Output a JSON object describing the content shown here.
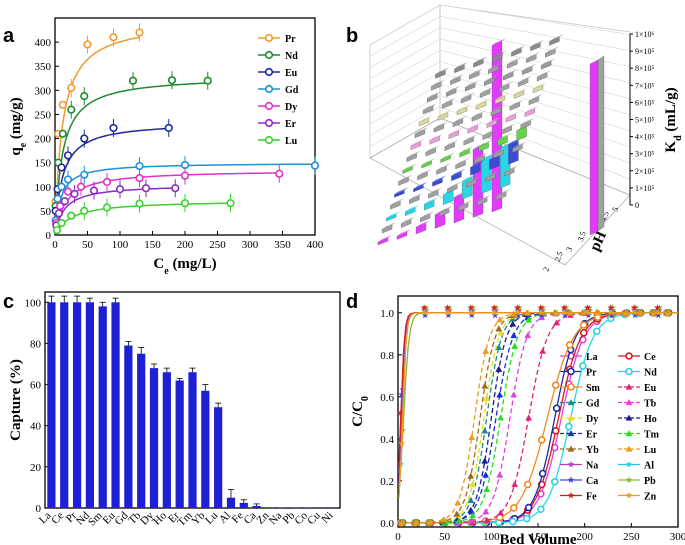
{
  "panels": {
    "a": "a",
    "b": "b",
    "c": "c",
    "d": "d"
  },
  "chart_data": [
    {
      "panel": "a",
      "type": "scatter",
      "xlabel": "C",
      "xlabel_sub": "e",
      "xlabel_unit": " (mg/L)",
      "ylabel": "q",
      "ylabel_sub": "e",
      "ylabel_unit": " (mg/g)",
      "xlim": [
        0,
        400
      ],
      "ylim": [
        0,
        450
      ],
      "xticks": [
        0,
        50,
        100,
        150,
        200,
        250,
        300,
        350,
        400
      ],
      "yticks": [
        0,
        50,
        100,
        150,
        200,
        250,
        300,
        350,
        400
      ],
      "legend_position": "top-right",
      "series": [
        {
          "name": "Pr",
          "color": "#f39a2b",
          "qmax": 445,
          "K": 0.09,
          "x": [
            1,
            5,
            12,
            25,
            50,
            90,
            130
          ],
          "y": [
            70,
            210,
            270,
            305,
            395,
            410,
            420
          ]
        },
        {
          "name": "Nd",
          "color": "#1f8a2e",
          "qmax": 330,
          "K": 0.09,
          "x": [
            1,
            5,
            12,
            25,
            45,
            120,
            180,
            235
          ],
          "y": [
            60,
            150,
            210,
            260,
            288,
            320,
            321,
            320
          ]
        },
        {
          "name": "Eu",
          "color": "#1b2a9c",
          "qmax": 235,
          "K": 0.09,
          "x": [
            1,
            4,
            10,
            20,
            45,
            90,
            175
          ],
          "y": [
            50,
            95,
            140,
            165,
            200,
            222,
            222
          ]
        },
        {
          "name": "Gd",
          "color": "#1e90d6",
          "qmax": 150,
          "K": 0.12,
          "x": [
            1,
            4,
            10,
            20,
            45,
            130,
            200,
            400
          ],
          "y": [
            30,
            75,
            100,
            115,
            125,
            143,
            145,
            144
          ]
        },
        {
          "name": "Dy",
          "color": "#e030c8",
          "qmax": 135,
          "K": 0.06,
          "x": [
            2,
            8,
            20,
            40,
            80,
            130,
            200,
            345
          ],
          "y": [
            25,
            60,
            90,
            100,
            110,
            118,
            123,
            127
          ]
        },
        {
          "name": "Er",
          "color": "#8a2bc8",
          "qmax": 105,
          "K": 0.07,
          "x": [
            2,
            6,
            15,
            30,
            60,
            100,
            140,
            185
          ],
          "y": [
            20,
            45,
            70,
            85,
            92,
            95,
            97,
            97
          ]
        },
        {
          "name": "Lu",
          "color": "#3ad12c",
          "qmax": 72,
          "K": 0.04,
          "x": [
            3,
            10,
            25,
            45,
            80,
            130,
            200,
            270
          ],
          "y": [
            10,
            25,
            40,
            50,
            57,
            65,
            66,
            66
          ]
        }
      ]
    },
    {
      "panel": "b",
      "type": "bar3d",
      "zlabel": "K",
      "zlabel_sub": "d",
      "zlabel_unit": " (mL/g)",
      "xlabel": "pH",
      "zticks": [
        "0",
        "1×10⁵",
        "2×10⁵",
        "3×10⁵",
        "4×10⁵",
        "5×10⁵",
        "6×10⁵",
        "7×10⁵",
        "8×10⁵",
        "9×10⁵",
        "1×10⁶"
      ],
      "ph_ticks": [
        "2",
        "2.5",
        "3",
        "3.5",
        "4",
        "4.5",
        "5"
      ],
      "row_colors": [
        "#e23aff",
        "#a0a0a0",
        "#28d6e8",
        "#a0a0a0",
        "#3b4bd8",
        "#a0a0a0",
        "#64d24a",
        "#a0a0a0",
        "#e8a0d8",
        "#a0a0a0",
        "#d8d8a0",
        "#a0a0a0",
        "#9a9a9a",
        "#a0a0a0",
        "#8a8a8a"
      ],
      "front_row_values": [
        0.01,
        0.02,
        0.04,
        0.08,
        0.15,
        0.4,
        0.98
      ]
    },
    {
      "panel": "c",
      "type": "bar",
      "ylabel": "Capture (%)",
      "ylim": [
        0,
        105
      ],
      "yticks": [
        0,
        20,
        40,
        60,
        80,
        100
      ],
      "color": "#1f1fd6",
      "categories": [
        "La",
        "Ce",
        "Pr",
        "Nd",
        "Sm",
        "Eu",
        "Gd",
        "Tb",
        "Dy",
        "Ho",
        "Er",
        "Tm",
        "Yb",
        "Lu",
        "Al",
        "Fe",
        "Ca",
        "Zn",
        "Na",
        "Pb",
        "Co",
        "Cu",
        "Ni"
      ],
      "values": [
        100,
        100,
        100,
        100,
        98,
        100,
        79,
        75,
        68,
        66,
        62,
        66,
        57,
        49,
        5,
        2.5,
        1,
        0.3,
        0.2,
        0.2,
        0.2,
        0.1,
        0.1
      ],
      "errors": [
        3,
        3,
        3,
        2,
        2,
        2,
        2,
        3,
        2,
        2,
        1,
        2,
        3,
        2,
        4,
        1.5,
        1,
        0,
        0,
        0,
        0,
        0,
        0
      ]
    },
    {
      "panel": "d",
      "type": "line",
      "xlabel": "Bed Volume",
      "ylabel": "C/C",
      "ylabel_sub": "0",
      "xlim": [
        0,
        300
      ],
      "ylim": [
        -0.02,
        1.08
      ],
      "xticks": [
        0,
        50,
        100,
        150,
        200,
        250,
        300
      ],
      "yticks": [
        0.0,
        0.2,
        0.4,
        0.6,
        0.8,
        1.0
      ],
      "legend_position": "center-right",
      "series": [
        {
          "name": "La",
          "color": "#e040e0",
          "marker": "circle",
          "mid": 175,
          "w": 12,
          "dashed": false
        },
        {
          "name": "Ce",
          "color": "#d81b1b",
          "marker": "circle",
          "mid": 172,
          "w": 12,
          "dashed": false
        },
        {
          "name": "Pr",
          "color": "#1b2aa8",
          "marker": "circle",
          "mid": 168,
          "w": 11,
          "dashed": false
        },
        {
          "name": "Nd",
          "color": "#28d6e8",
          "marker": "circle",
          "mid": 185,
          "w": 12,
          "dashed": false
        },
        {
          "name": "Sm",
          "color": "#f08a20",
          "marker": "circle",
          "mid": 160,
          "w": 14,
          "dashed": false
        },
        {
          "name": "Eu",
          "color": "#e0207a",
          "marker": "triangle",
          "mid": 140,
          "w": 10,
          "dashed": true
        },
        {
          "name": "Gd",
          "color": "#1a8a8a",
          "marker": "triangle",
          "mid": 95,
          "w": 8,
          "dashed": true
        },
        {
          "name": "Tb",
          "color": "#e040e0",
          "marker": "triangle",
          "mid": 120,
          "w": 9,
          "dashed": true
        },
        {
          "name": "Dy",
          "color": "#e0e020",
          "marker": "triangle",
          "mid": 92,
          "w": 8,
          "dashed": true
        },
        {
          "name": "Ho",
          "color": "#1b1b8a",
          "marker": "triangle",
          "mid": 100,
          "w": 8,
          "dashed": true
        },
        {
          "name": "Er",
          "color": "#1b2ad8",
          "marker": "triangle",
          "mid": 105,
          "w": 9,
          "dashed": true
        },
        {
          "name": "Tm",
          "color": "#20e020",
          "marker": "triangle",
          "mid": 110,
          "w": 9,
          "dashed": true
        },
        {
          "name": "Yb",
          "color": "#9a6a20",
          "marker": "triangle",
          "mid": 88,
          "w": 8,
          "dashed": true
        },
        {
          "name": "Lu",
          "color": "#f09a20",
          "marker": "triangle",
          "mid": 82,
          "w": 8,
          "dashed": true
        },
        {
          "name": "Na",
          "color": "#c03ac0",
          "marker": "star",
          "mid": 4,
          "w": 2,
          "dashed": false
        },
        {
          "name": "Al",
          "color": "#28c8e8",
          "marker": "star",
          "mid": 5,
          "w": 2,
          "dashed": false
        },
        {
          "name": "Ca",
          "color": "#3a4ad8",
          "marker": "star",
          "mid": 3,
          "w": 2,
          "dashed": false
        },
        {
          "name": "Pb",
          "color": "#8ab83a",
          "marker": "star",
          "mid": 6,
          "w": 3,
          "dashed": false
        },
        {
          "name": "Fe",
          "color": "#e01b1b",
          "marker": "star",
          "mid": 3,
          "w": 2,
          "dashed": false
        },
        {
          "name": "Zn",
          "color": "#f09a20",
          "marker": "star",
          "mid": 5,
          "w": 2,
          "dashed": false
        }
      ]
    }
  ]
}
